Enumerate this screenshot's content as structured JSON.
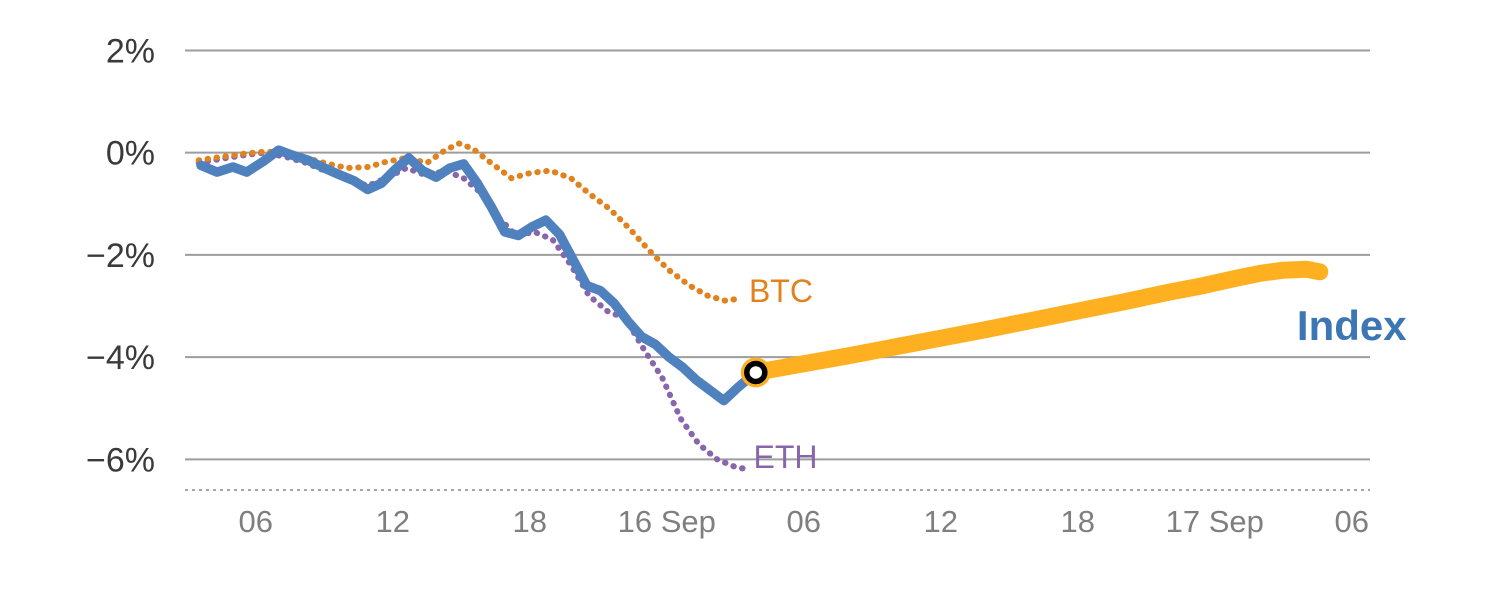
{
  "chart_data": {
    "type": "line",
    "title": "",
    "xlabel": "",
    "ylabel": "",
    "x_unit": "hours since 15 Sep 00:00",
    "xlim": [
      2.9,
      54.8
    ],
    "ylim": [
      -6.6,
      2.4
    ],
    "grid": true,
    "legend_position": "inline-labels",
    "colors": {
      "grid": "#9d9d9d",
      "axis": "#a6a6a6",
      "y_tick_text": "#3a3a3a",
      "x_tick_text": "#7f7f7f"
    },
    "y_ticks": [
      {
        "value": 2,
        "label": "2%"
      },
      {
        "value": 0,
        "label": "0%"
      },
      {
        "value": -2,
        "label": "−2%"
      },
      {
        "value": -4,
        "label": "−4%"
      },
      {
        "value": -6,
        "label": "−6%"
      }
    ],
    "x_ticks": [
      {
        "value": 6,
        "label": "06"
      },
      {
        "value": 12,
        "label": "12"
      },
      {
        "value": 18,
        "label": "18"
      },
      {
        "value": 24,
        "label": "16 Sep"
      },
      {
        "value": 30,
        "label": "06"
      },
      {
        "value": 36,
        "label": "12"
      },
      {
        "value": 42,
        "label": "18"
      },
      {
        "value": 48,
        "label": "17 Sep"
      },
      {
        "value": 54,
        "label": "06"
      }
    ],
    "series": [
      {
        "id": "eth",
        "name": "ETH",
        "color": "#8966ac",
        "style": "dotted",
        "width": 6,
        "x": [
          3.5,
          4.5,
          5.5,
          6.4,
          7.3,
          8.2,
          9.0,
          10.0,
          10.9,
          11.7,
          12.6,
          13.5,
          14.3,
          15.1,
          15.9,
          16.7,
          17.4,
          18.2,
          19.0,
          19.8,
          20.6,
          21.4,
          22.2,
          23.0,
          23.8,
          24.6,
          25.4,
          26.2,
          27.0,
          27.6
        ],
        "y": [
          -0.2,
          -0.12,
          -0.05,
          0.0,
          -0.08,
          -0.2,
          -0.35,
          -0.5,
          -0.65,
          -0.5,
          -0.3,
          -0.45,
          -0.35,
          -0.5,
          -0.8,
          -1.3,
          -1.62,
          -1.55,
          -1.7,
          -2.2,
          -2.8,
          -3.1,
          -3.25,
          -3.85,
          -4.4,
          -5.2,
          -5.7,
          -6.0,
          -6.15,
          -6.2
        ]
      },
      {
        "id": "btc",
        "name": "BTC",
        "color": "#e0821e",
        "style": "dotted",
        "width": 6,
        "x": [
          3.5,
          4.5,
          5.5,
          6.4,
          7.3,
          8.2,
          9.0,
          10.0,
          10.9,
          11.7,
          12.6,
          13.5,
          14.3,
          14.9,
          15.5,
          16.3,
          17.2,
          18.0,
          18.9,
          19.8,
          20.6,
          21.5,
          22.4,
          23.2,
          24.1,
          25.0,
          25.8,
          26.6,
          27.2
        ],
        "y": [
          -0.15,
          -0.08,
          -0.02,
          0.02,
          0.0,
          -0.1,
          -0.2,
          -0.3,
          -0.28,
          -0.18,
          -0.1,
          -0.2,
          0.05,
          0.18,
          0.08,
          -0.2,
          -0.5,
          -0.4,
          -0.35,
          -0.5,
          -0.8,
          -1.1,
          -1.5,
          -1.9,
          -2.3,
          -2.6,
          -2.8,
          -2.9,
          -2.85
        ]
      },
      {
        "id": "index",
        "name": "Index",
        "color": "#4e81bd",
        "style": "solid",
        "width": 9.5,
        "x": [
          3.6,
          4.3,
          5.0,
          5.6,
          6.3,
          7.0,
          7.6,
          8.3,
          9.0,
          9.6,
          10.3,
          10.9,
          11.5,
          12.1,
          12.7,
          13.3,
          13.9,
          14.5,
          15.1,
          15.7,
          16.3,
          16.9,
          17.5,
          18.1,
          18.7,
          19.3,
          19.9,
          20.5,
          21.1,
          21.7,
          22.3,
          22.9,
          23.5,
          24.1,
          24.7,
          25.3,
          25.9,
          26.5,
          27.1,
          27.9
        ],
        "y": [
          -0.25,
          -0.38,
          -0.28,
          -0.38,
          -0.18,
          0.05,
          -0.05,
          -0.15,
          -0.3,
          -0.42,
          -0.55,
          -0.72,
          -0.6,
          -0.33,
          -0.1,
          -0.35,
          -0.48,
          -0.3,
          -0.22,
          -0.6,
          -1.05,
          -1.55,
          -1.62,
          -1.45,
          -1.32,
          -1.6,
          -2.1,
          -2.6,
          -2.7,
          -2.95,
          -3.3,
          -3.6,
          -3.75,
          -4.0,
          -4.2,
          -4.45,
          -4.65,
          -4.85,
          -4.6,
          -4.3
        ]
      },
      {
        "id": "index_live",
        "name": "Index (live segment)",
        "color": "#ffb020",
        "style": "solid",
        "width": 17,
        "x": [
          27.9,
          30,
          32,
          34,
          36,
          38,
          40,
          42,
          44,
          46,
          47.5,
          49,
          50,
          51,
          52,
          52.6
        ],
        "y": [
          -4.3,
          -4.13,
          -3.97,
          -3.8,
          -3.63,
          -3.46,
          -3.28,
          -3.1,
          -2.92,
          -2.73,
          -2.6,
          -2.45,
          -2.36,
          -2.3,
          -2.28,
          -2.33
        ]
      }
    ],
    "marker": {
      "x": 27.9,
      "y": -4.3,
      "halo_color": "#ffb020",
      "ring_color": "#000000",
      "fill_color": "#ffffff"
    },
    "annotations": [
      {
        "text": "BTC",
        "x": 27.6,
        "y": -2.7,
        "color": "#e0821e",
        "size": 32,
        "bold": false
      },
      {
        "text": "ETH",
        "x": 27.8,
        "y": -5.95,
        "color": "#8966ac",
        "size": 32,
        "bold": false
      },
      {
        "text": "Index",
        "x": 51.6,
        "y": -3.4,
        "color": "#3d76b5",
        "size": 42,
        "bold": true
      }
    ]
  }
}
